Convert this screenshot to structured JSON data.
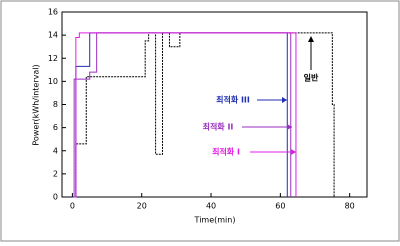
{
  "chart_data": {
    "type": "line",
    "x_label": "Time(min)",
    "y_label": "Power(kWh/interval)",
    "xlim": [
      -3,
      85
    ],
    "xticks": [
      0,
      20,
      40,
      60,
      80
    ],
    "ylim": [
      0,
      16
    ],
    "yticks": [
      0,
      2,
      4,
      6,
      8,
      10,
      12,
      14,
      16
    ],
    "series": [
      {
        "name": "일반",
        "color": "#000000",
        "x": [
          0,
          1,
          1,
          4,
          4,
          21,
          21,
          22,
          22,
          24,
          24,
          26,
          26,
          28,
          28,
          31,
          31,
          75,
          75,
          75.5,
          75.5
        ],
        "values": [
          0,
          0,
          4.6,
          4.6,
          10.4,
          10.4,
          13.5,
          13.5,
          14.2,
          14.2,
          3.7,
          3.7,
          14.2,
          14.2,
          13,
          13,
          14.2,
          14.2,
          8,
          8,
          0
        ]
      },
      {
        "name": "최적화 III",
        "color": "#1f2fb0",
        "x": [
          0,
          1,
          1,
          5,
          5,
          62,
          62
        ],
        "values": [
          0,
          0,
          11.3,
          11.3,
          14.2,
          14.2,
          0
        ]
      },
      {
        "name": "최적화 II",
        "color": "#9a2fc0",
        "x": [
          0.5,
          0.5,
          5,
          5,
          7,
          7,
          63,
          63
        ],
        "values": [
          0,
          10.2,
          10.2,
          10.8,
          10.8,
          14.2,
          14.2,
          0
        ]
      },
      {
        "name": "최적화 I",
        "color": "#e020e0",
        "x": [
          0.5,
          1,
          1,
          2,
          2,
          64.5,
          64.5
        ],
        "values": [
          0,
          0,
          13.8,
          13.8,
          14.2,
          14.2,
          0
        ]
      }
    ]
  }
}
